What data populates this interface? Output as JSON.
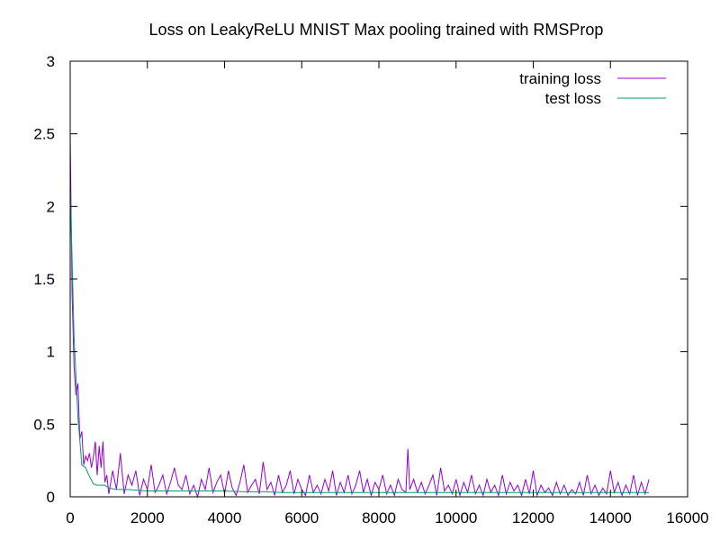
{
  "chart_data": {
    "type": "line",
    "title": "Loss on LeakyReLU MNIST Max pooling trained with RMSProp",
    "xlabel": "",
    "ylabel": "",
    "xlim": [
      0,
      16000
    ],
    "ylim": [
      0,
      3
    ],
    "x_ticks": [
      "0",
      "2000",
      "4000",
      "6000",
      "8000",
      "10000",
      "12000",
      "14000",
      "16000"
    ],
    "y_ticks": [
      "0",
      "0.5",
      "1",
      "1.5",
      "2",
      "2.5",
      "3"
    ],
    "grid": false,
    "legend_position": "top-right",
    "series": [
      {
        "name": "training loss",
        "color": "#9400d3",
        "x": [
          0,
          50,
          100,
          150,
          200,
          250,
          300,
          350,
          400,
          450,
          500,
          550,
          600,
          650,
          700,
          750,
          800,
          850,
          900,
          950,
          1000,
          1100,
          1200,
          1300,
          1400,
          1500,
          1600,
          1700,
          1800,
          1900,
          2000,
          2100,
          2200,
          2300,
          2400,
          2500,
          2600,
          2700,
          2800,
          2900,
          3000,
          3100,
          3200,
          3300,
          3400,
          3500,
          3600,
          3700,
          3800,
          3900,
          4000,
          4100,
          4200,
          4300,
          4400,
          4500,
          4600,
          4700,
          4800,
          4900,
          5000,
          5100,
          5200,
          5300,
          5400,
          5500,
          5600,
          5700,
          5800,
          5900,
          6000,
          6100,
          6200,
          6300,
          6400,
          6500,
          6600,
          6700,
          6800,
          6900,
          7000,
          7100,
          7200,
          7300,
          7400,
          7500,
          7600,
          7700,
          7800,
          7900,
          8000,
          8100,
          8200,
          8300,
          8400,
          8500,
          8600,
          8700,
          8750,
          8800,
          8900,
          9000,
          9100,
          9200,
          9300,
          9400,
          9500,
          9600,
          9700,
          9800,
          9900,
          10000,
          10100,
          10200,
          10300,
          10400,
          10500,
          10600,
          10700,
          10800,
          10900,
          11000,
          11100,
          11200,
          11300,
          11400,
          11500,
          11600,
          11700,
          11800,
          11900,
          12000,
          12100,
          12200,
          12300,
          12400,
          12500,
          12600,
          12700,
          12800,
          12900,
          13000,
          13100,
          13200,
          13300,
          13400,
          13500,
          13600,
          13700,
          13800,
          13900,
          14000,
          14100,
          14200,
          14300,
          14400,
          14500,
          14600,
          14700,
          14800,
          14900,
          15000
        ],
        "y": [
          2.48,
          1.4,
          0.9,
          0.7,
          0.78,
          0.4,
          0.45,
          0.22,
          0.28,
          0.25,
          0.3,
          0.2,
          0.27,
          0.38,
          0.15,
          0.35,
          0.2,
          0.38,
          0.1,
          0.15,
          0.02,
          0.18,
          0.05,
          0.3,
          0.02,
          0.15,
          0.08,
          0.18,
          0.01,
          0.12,
          0.05,
          0.22,
          0.03,
          0.08,
          0.15,
          0.02,
          0.1,
          0.2,
          0.08,
          0.05,
          0.15,
          0.02,
          0.08,
          0.0,
          0.12,
          0.05,
          0.2,
          0.03,
          0.1,
          0.15,
          0.02,
          0.18,
          0.06,
          0.01,
          0.1,
          0.22,
          0.03,
          0.08,
          0.12,
          0.02,
          0.24,
          0.05,
          0.1,
          0.01,
          0.15,
          0.03,
          0.08,
          0.18,
          0.02,
          0.12,
          0.05,
          0.01,
          0.15,
          0.03,
          0.08,
          0.02,
          0.12,
          0.04,
          0.18,
          0.01,
          0.1,
          0.03,
          0.15,
          0.02,
          0.08,
          0.18,
          0.03,
          0.12,
          0.01,
          0.1,
          0.05,
          0.15,
          0.02,
          0.08,
          0.01,
          0.12,
          0.05,
          0.03,
          0.33,
          0.05,
          0.12,
          0.03,
          0.1,
          0.02,
          0.08,
          0.15,
          0.01,
          0.2,
          0.04,
          0.08,
          0.02,
          0.12,
          0.01,
          0.1,
          0.03,
          0.15,
          0.02,
          0.08,
          0.01,
          0.12,
          0.03,
          0.08,
          0.01,
          0.15,
          0.02,
          0.1,
          0.04,
          0.08,
          0.01,
          0.12,
          0.02,
          0.18,
          0.01,
          0.08,
          0.03,
          0.06,
          0.01,
          0.1,
          0.02,
          0.08,
          0.01,
          0.05,
          0.02,
          0.1,
          0.01,
          0.15,
          0.02,
          0.08,
          0.01,
          0.06,
          0.02,
          0.18,
          0.03,
          0.1,
          0.01,
          0.08,
          0.02,
          0.15,
          0.01,
          0.1,
          0.02,
          0.12
        ]
      },
      {
        "name": "test loss",
        "color": "#009e73",
        "x": [
          0,
          100,
          200,
          300,
          400,
          500,
          600,
          700,
          800,
          900,
          1000,
          1200,
          1500,
          2000,
          2500,
          3000,
          3500,
          4000,
          4500,
          5000,
          5500,
          6000,
          6500,
          7000,
          7500,
          8000,
          8500,
          9000,
          9500,
          10000,
          10500,
          11000,
          11500,
          12000,
          12500,
          13000,
          13500,
          14000,
          14500,
          15000
        ],
        "y": [
          2.15,
          1.1,
          0.55,
          0.22,
          0.2,
          0.14,
          0.09,
          0.08,
          0.08,
          0.08,
          0.06,
          0.05,
          0.05,
          0.04,
          0.04,
          0.04,
          0.04,
          0.04,
          0.035,
          0.035,
          0.03,
          0.03,
          0.03,
          0.03,
          0.03,
          0.03,
          0.03,
          0.03,
          0.03,
          0.03,
          0.03,
          0.03,
          0.03,
          0.03,
          0.03,
          0.03,
          0.03,
          0.03,
          0.03,
          0.03
        ]
      }
    ]
  }
}
